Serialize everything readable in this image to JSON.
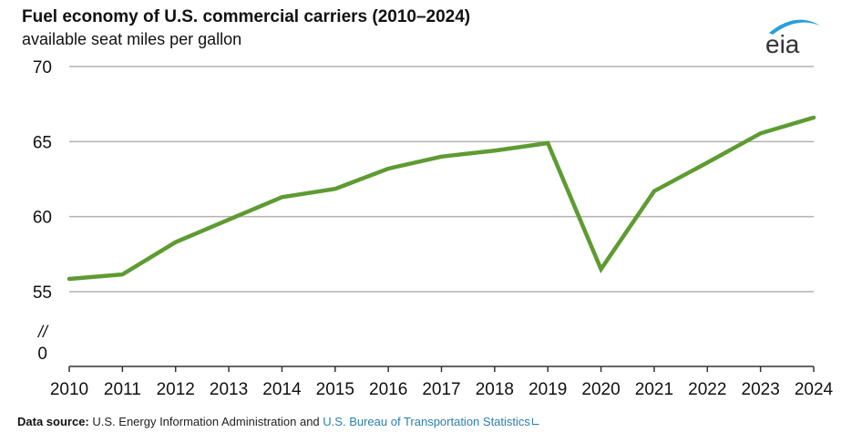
{
  "header": {
    "title": "Fuel economy of U.S. commercial carriers (2010–2024)",
    "subtitle": "available seat miles per gallon",
    "logo_text": "eia"
  },
  "footer": {
    "label": "Data source:",
    "text": "U.S. Energy Information Administration and",
    "link_text": "U.S. Bureau of Transportation Statistics",
    "link_icon": "external-link-icon"
  },
  "colors": {
    "line": "#5e9b32",
    "grid": "#b3b3b3",
    "axis": "#333333",
    "logo_arc": "#2a9fd8",
    "logo_text": "#333333",
    "link": "#2a7fae"
  },
  "chart_data": {
    "type": "line",
    "title": "Fuel economy of U.S. commercial carriers (2010–2024)",
    "ylabel": "available seat miles per gallon",
    "xlabel": "",
    "x": [
      "2010",
      "2011",
      "2012",
      "2013",
      "2014",
      "2015",
      "2016",
      "2017",
      "2018",
      "2019",
      "2020",
      "2021",
      "2022",
      "2023",
      "2024"
    ],
    "series": [
      {
        "name": "available seat miles per gallon",
        "values": [
          55.85,
          56.15,
          58.3,
          59.8,
          61.3,
          61.85,
          63.2,
          64.0,
          64.4,
          64.9,
          56.5,
          61.7,
          63.6,
          65.55,
          66.6
        ]
      }
    ],
    "ylim": [
      55,
      70
    ],
    "yticks": [
      55,
      60,
      65,
      70
    ],
    "ytick_labels": [
      "55",
      "60",
      "65",
      "70"
    ],
    "axis_break": {
      "symbol": "//",
      "zero_label": "0"
    },
    "grid": true,
    "legend": "none"
  }
}
